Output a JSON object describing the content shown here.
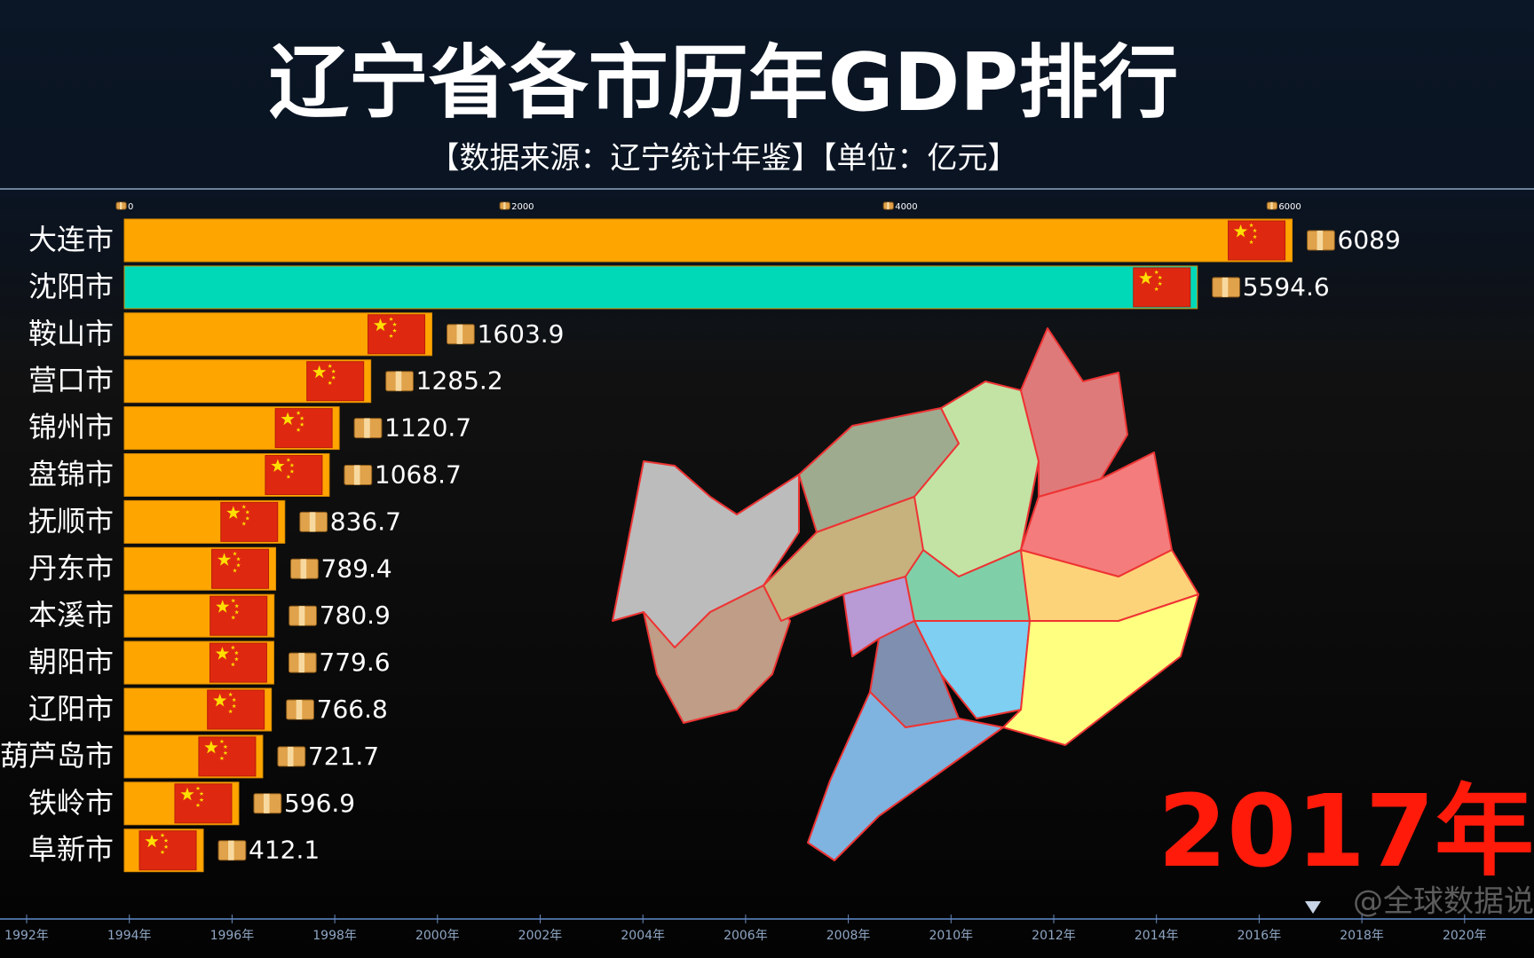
{
  "chart_data": {
    "type": "bar",
    "title": "辽宁省各市历年GDP排行",
    "subtitle": "【数据来源：辽宁统计年鉴】【单位：亿元】",
    "categories": [
      "大连市",
      "沈阳市",
      "鞍山市",
      "营口市",
      "锦州市",
      "盘锦市",
      "抚顺市",
      "丹东市",
      "本溪市",
      "朝阳市",
      "辽阳市",
      "葫芦岛市",
      "铁岭市",
      "阜新市"
    ],
    "values": [
      6089,
      5594.6,
      1603.9,
      1285.2,
      1120.7,
      1068.7,
      836.7,
      789.4,
      780.9,
      779.6,
      766.8,
      721.7,
      596.9,
      412.1
    ],
    "colors": [
      "#ffa500",
      "#00d9b8",
      "#ffa500",
      "#ffa500",
      "#ffa500",
      "#ffa500",
      "#ffa500",
      "#ffa500",
      "#ffa500",
      "#ffa500",
      "#ffa500",
      "#ffa500",
      "#ffa500",
      "#ffa500"
    ],
    "xlim": [
      0,
      7350
    ],
    "xticks": [
      0,
      2000,
      4000,
      6000
    ],
    "period": "2017年",
    "timeline": [
      "1992年",
      "1994年",
      "1996年",
      "1998年",
      "2000年",
      "2002年",
      "2004年",
      "2006年",
      "2008年",
      "2010年",
      "2012年",
      "2014年",
      "2016年",
      "2018年",
      "2020年"
    ],
    "watermark": "@全球数据说"
  }
}
